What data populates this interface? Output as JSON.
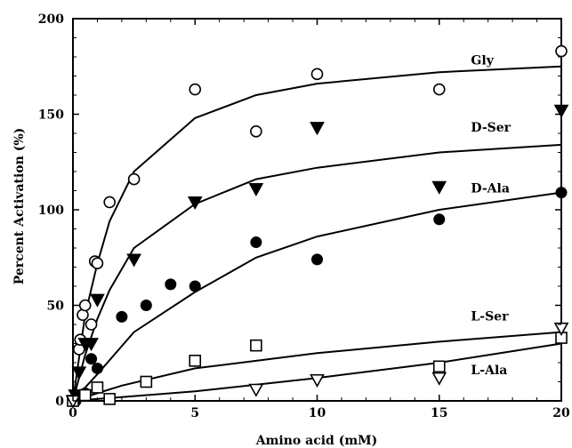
{
  "chart_data": {
    "type": "scatter",
    "title": "",
    "xlabel": "Amino acid (mM)",
    "ylabel": "Percent Activation (%)",
    "xlim": [
      0,
      20
    ],
    "ylim": [
      0,
      200
    ],
    "xticks": [
      0,
      5,
      10,
      15,
      20
    ],
    "yticks": [
      0,
      50,
      100,
      150,
      200
    ],
    "grid": false,
    "legend": "inline labels at right",
    "series": [
      {
        "name": "Gly",
        "marker": "open-circle",
        "points": [
          [
            0.1,
            0
          ],
          [
            0.25,
            27
          ],
          [
            0.3,
            32
          ],
          [
            0.4,
            45
          ],
          [
            0.5,
            50
          ],
          [
            0.75,
            40
          ],
          [
            0.9,
            73
          ],
          [
            1.0,
            72
          ],
          [
            1.5,
            104
          ],
          [
            2.5,
            116
          ],
          [
            5,
            163
          ],
          [
            7.5,
            141
          ],
          [
            10,
            171
          ],
          [
            15,
            163
          ],
          [
            20,
            183
          ]
        ],
        "fit": [
          [
            0,
            0
          ],
          [
            0.5,
            45
          ],
          [
            1,
            72
          ],
          [
            1.5,
            94
          ],
          [
            2.5,
            120
          ],
          [
            5,
            148
          ],
          [
            7.5,
            160
          ],
          [
            10,
            166
          ],
          [
            15,
            172
          ],
          [
            20,
            175
          ]
        ]
      },
      {
        "name": "D-Ser",
        "marker": "filled-triangle-down",
        "points": [
          [
            0.1,
            3
          ],
          [
            0.25,
            15
          ],
          [
            0.5,
            30
          ],
          [
            0.75,
            30
          ],
          [
            1.0,
            53
          ],
          [
            2.5,
            74
          ],
          [
            5,
            104
          ],
          [
            7.5,
            111
          ],
          [
            10,
            143
          ],
          [
            15,
            112
          ],
          [
            20,
            152
          ]
        ],
        "fit": [
          [
            0,
            0
          ],
          [
            0.5,
            24
          ],
          [
            1,
            43
          ],
          [
            1.5,
            58
          ],
          [
            2.5,
            80
          ],
          [
            5,
            103
          ],
          [
            7.5,
            116
          ],
          [
            10,
            122
          ],
          [
            15,
            130
          ],
          [
            20,
            134
          ]
        ]
      },
      {
        "name": "D-Ala",
        "marker": "filled-circle",
        "points": [
          [
            0.1,
            0
          ],
          [
            0.5,
            4
          ],
          [
            0.75,
            22
          ],
          [
            1.0,
            17
          ],
          [
            2.0,
            44
          ],
          [
            3.0,
            50
          ],
          [
            4.0,
            61
          ],
          [
            5,
            60
          ],
          [
            7.5,
            83
          ],
          [
            10,
            74
          ],
          [
            15,
            95
          ],
          [
            20,
            109
          ]
        ],
        "fit": [
          [
            0,
            0
          ],
          [
            0.5,
            7
          ],
          [
            1,
            14
          ],
          [
            2.5,
            36
          ],
          [
            5,
            57
          ],
          [
            7.5,
            75
          ],
          [
            10,
            86
          ],
          [
            15,
            100
          ],
          [
            20,
            109
          ]
        ]
      },
      {
        "name": "L-Ser",
        "marker": "open-square",
        "points": [
          [
            0,
            0
          ],
          [
            0.5,
            3
          ],
          [
            1.0,
            7
          ],
          [
            1.5,
            1
          ],
          [
            3,
            10
          ],
          [
            5,
            21
          ],
          [
            7.5,
            29
          ],
          [
            15,
            18
          ],
          [
            20,
            33
          ]
        ],
        "fit": [
          [
            0,
            0
          ],
          [
            2,
            8
          ],
          [
            5,
            17
          ],
          [
            7.5,
            21
          ],
          [
            10,
            25
          ],
          [
            15,
            31
          ],
          [
            20,
            36
          ]
        ]
      },
      {
        "name": "L-Ala",
        "marker": "open-triangle-down",
        "points": [
          [
            0,
            0
          ],
          [
            7.5,
            6
          ],
          [
            10,
            11
          ],
          [
            15,
            12
          ],
          [
            20,
            38
          ]
        ],
        "fit": [
          [
            0,
            0
          ],
          [
            5,
            5
          ],
          [
            10,
            12
          ],
          [
            15,
            20
          ],
          [
            20,
            30
          ]
        ]
      }
    ]
  }
}
